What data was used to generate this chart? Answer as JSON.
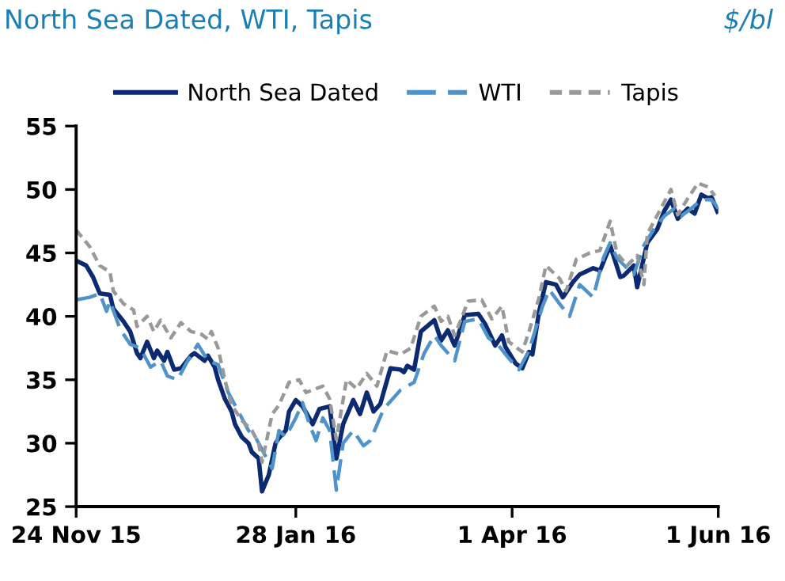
{
  "chart_data": {
    "type": "line",
    "title": "North Sea Dated, WTI, Tapis",
    "ylabel": "$/bl",
    "xlim": [
      "2015-11-24",
      "2016-06-01"
    ],
    "xticks": [
      {
        "value": "2015-11-24",
        "label": "24 Nov 15"
      },
      {
        "value": "2016-01-28",
        "label": "28 Jan 16"
      },
      {
        "value": "2016-04-01",
        "label": "1 Apr 16"
      },
      {
        "value": "2016-06-01",
        "label": "1 Jun 16"
      }
    ],
    "ylim": [
      25,
      55
    ],
    "yticks": [
      25,
      30,
      35,
      40,
      45,
      50,
      55
    ],
    "grid": false,
    "legend": "top",
    "marker": "none",
    "series": [
      {
        "name": "North Sea Dated",
        "color": "#0b2a72",
        "line_style": "solid",
        "x": [
          "2015-11-24",
          "2015-11-27",
          "2015-11-29",
          "2015-12-01",
          "2015-12-04",
          "2015-12-05",
          "2015-12-08",
          "2015-12-10",
          "2015-12-12",
          "2015-12-13",
          "2015-12-15",
          "2015-12-17",
          "2015-12-18",
          "2015-12-20",
          "2015-12-21",
          "2015-12-23",
          "2015-12-25",
          "2015-12-28",
          "2015-12-29",
          "2016-01-01",
          "2016-01-02",
          "2016-01-04",
          "2016-01-05",
          "2016-01-07",
          "2016-01-09",
          "2016-01-10",
          "2016-01-12",
          "2016-01-14",
          "2016-01-15",
          "2016-01-17",
          "2016-01-18",
          "2016-01-20",
          "2016-01-22",
          "2016-01-23",
          "2016-01-25",
          "2016-01-26",
          "2016-01-28",
          "2016-01-30",
          "2016-02-02",
          "2016-02-04",
          "2016-02-07",
          "2016-02-09",
          "2016-02-11",
          "2016-02-14",
          "2016-02-16",
          "2016-02-18",
          "2016-02-20",
          "2016-02-22",
          "2016-02-25",
          "2016-02-28",
          "2016-02-29",
          "2016-03-01",
          "2016-03-03",
          "2016-03-05",
          "2016-03-09",
          "2016-03-11",
          "2016-03-13",
          "2016-03-15",
          "2016-03-18",
          "2016-03-22",
          "2016-03-24",
          "2016-03-27",
          "2016-03-29",
          "2016-03-30",
          "2016-04-02",
          "2016-04-04",
          "2016-04-06",
          "2016-04-07",
          "2016-04-09",
          "2016-04-11",
          "2016-04-14",
          "2016-04-16",
          "2016-04-19",
          "2016-04-21",
          "2016-04-25",
          "2016-04-27",
          "2016-04-30",
          "2016-05-03",
          "2016-05-04",
          "2016-05-07",
          "2016-05-08",
          "2016-05-11",
          "2016-05-14",
          "2016-05-16",
          "2016-05-18",
          "2016-05-20",
          "2016-05-23",
          "2016-05-25",
          "2016-05-27",
          "2016-05-29",
          "2016-05-30",
          "2016-06-01"
        ],
        "values": [
          44.4,
          44.0,
          43.1,
          41.8,
          41.7,
          40.6,
          39.6,
          38.8,
          37.1,
          36.7,
          38,
          36.7,
          37.3,
          36.5,
          37.2,
          35.8,
          35.9,
          36.9,
          37.1,
          36.5,
          36.9,
          36,
          35,
          33.5,
          32.5,
          31.5,
          30.5,
          30,
          29.3,
          28.8,
          26.2,
          27.5,
          30,
          30.4,
          31,
          32.5,
          33.4,
          32.9,
          31.5,
          32.7,
          32.9,
          28.8,
          31.5,
          33.4,
          32.3,
          34,
          32.5,
          33.1,
          35.9,
          35.8,
          35.6,
          36.1,
          35.8,
          38.8,
          39.7,
          38.1,
          38.9,
          37.7,
          40.1,
          40.2,
          39.4,
          37.7,
          38.5,
          37.6,
          36.3,
          35.9,
          37.2,
          37,
          40.4,
          42.7,
          42.5,
          41.5,
          42.7,
          43.3,
          43.8,
          43.6,
          45.6,
          43.1,
          43.2,
          44,
          42.3,
          45.8,
          46.9,
          48.3,
          49.2,
          47.7,
          48.5,
          48.1,
          49.6,
          49.3,
          49.4,
          48.1
        ]
      },
      {
        "name": "WTI",
        "color": "#4f93c8",
        "line_style": "dashed",
        "x": [
          "2015-11-24",
          "2015-11-28",
          "2015-12-01",
          "2015-12-03",
          "2015-12-04",
          "2015-12-07",
          "2015-12-10",
          "2015-12-13",
          "2015-12-16",
          "2015-12-19",
          "2015-12-21",
          "2015-12-24",
          "2015-12-27",
          "2015-12-30",
          "2016-01-02",
          "2016-01-05",
          "2016-01-08",
          "2016-01-11",
          "2016-01-14",
          "2016-01-16",
          "2016-01-19",
          "2016-01-21",
          "2016-01-23",
          "2016-01-25",
          "2016-01-28",
          "2016-01-30",
          "2016-02-01",
          "2016-02-03",
          "2016-02-05",
          "2016-02-07",
          "2016-02-09",
          "2016-02-11",
          "2016-02-14",
          "2016-02-17",
          "2016-02-19",
          "2016-02-23",
          "2016-02-28",
          "2016-03-03",
          "2016-03-06",
          "2016-03-09",
          "2016-03-11",
          "2016-03-15",
          "2016-03-18",
          "2016-03-22",
          "2016-03-25",
          "2016-03-28",
          "2016-03-31",
          "2016-04-03",
          "2016-04-06",
          "2016-04-10",
          "2016-04-12",
          "2016-04-15",
          "2016-04-18",
          "2016-04-21",
          "2016-04-25",
          "2016-04-28",
          "2016-04-30",
          "2016-05-02",
          "2016-05-05",
          "2016-05-07",
          "2016-05-10",
          "2016-05-13",
          "2016-05-16",
          "2016-05-19",
          "2016-05-21",
          "2016-05-24",
          "2016-05-27",
          "2016-05-30",
          "2016-06-01"
        ],
        "values": [
          41.3,
          41.5,
          41.8,
          40.4,
          41.2,
          39,
          37.8,
          37.5,
          36,
          36.5,
          35.3,
          35,
          36.5,
          37.8,
          36.5,
          36.2,
          34,
          32.5,
          31,
          30.5,
          29,
          28,
          31,
          30.5,
          32,
          33.2,
          31.5,
          30.2,
          32,
          31,
          26.3,
          30,
          31,
          29.8,
          30.2,
          32.7,
          34.2,
          34.8,
          37.1,
          38.5,
          37.7,
          36.5,
          39.6,
          39.8,
          38.3,
          37.7,
          36.7,
          35.8,
          37.3,
          40.8,
          42.1,
          41,
          40,
          42.5,
          41.5,
          44.6,
          45.8,
          44.6,
          43.8,
          43.3,
          45.6,
          46.9,
          47.9,
          48.5,
          47.9,
          48.5,
          49.2,
          49.2,
          48.5
        ]
      },
      {
        "name": "Tapis",
        "color": "#999999",
        "line_style": "dotted",
        "x": [
          "2015-11-24",
          "2015-11-28",
          "2015-12-01",
          "2015-12-04",
          "2015-12-05",
          "2015-12-08",
          "2015-12-11",
          "2015-12-12",
          "2015-12-15",
          "2015-12-17",
          "2015-12-19",
          "2015-12-22",
          "2015-12-25",
          "2015-12-28",
          "2015-12-31",
          "2016-01-02",
          "2016-01-03",
          "2016-01-05",
          "2016-01-07",
          "2016-01-09",
          "2016-01-12",
          "2016-01-15",
          "2016-01-17",
          "2016-01-18",
          "2016-01-21",
          "2016-01-23",
          "2016-01-26",
          "2016-01-29",
          "2016-01-31",
          "2016-02-03",
          "2016-02-05",
          "2016-02-07",
          "2016-02-09",
          "2016-02-12",
          "2016-02-15",
          "2016-02-18",
          "2016-02-21",
          "2016-02-24",
          "2016-02-28",
          "2016-03-02",
          "2016-03-05",
          "2016-03-09",
          "2016-03-11",
          "2016-03-13",
          "2016-03-15",
          "2016-03-19",
          "2016-03-23",
          "2016-03-26",
          "2016-03-29",
          "2016-03-31",
          "2016-04-04",
          "2016-04-06",
          "2016-04-09",
          "2016-04-11",
          "2016-04-15",
          "2016-04-17",
          "2016-04-20",
          "2016-04-24",
          "2016-04-27",
          "2016-04-30",
          "2016-05-02",
          "2016-05-05",
          "2016-05-08",
          "2016-05-10",
          "2016-05-11",
          "2016-05-15",
          "2016-05-18",
          "2016-05-20",
          "2016-05-23",
          "2016-05-26",
          "2016-05-29",
          "2016-05-31"
        ],
        "values": [
          46.8,
          45.5,
          44,
          43.5,
          42,
          41,
          40.5,
          39.2,
          40,
          38.8,
          39.7,
          38.3,
          39.5,
          38.8,
          38.6,
          38.2,
          38.8,
          37.5,
          35,
          33,
          31.8,
          31,
          30,
          28.5,
          32.3,
          33,
          34.8,
          35,
          34,
          34.3,
          34.5,
          33.5,
          30.3,
          35,
          34.3,
          35.5,
          34.5,
          37.3,
          37,
          37.5,
          40,
          40.8,
          39.6,
          40,
          38.5,
          41.2,
          41.3,
          39.8,
          40.8,
          38,
          37.2,
          38.8,
          41.5,
          44,
          43,
          42,
          44.5,
          45,
          45.2,
          47.5,
          45,
          44,
          44.8,
          42.5,
          46.5,
          48.5,
          50,
          48,
          49.3,
          50.5,
          50.2,
          49.5
        ]
      }
    ]
  }
}
